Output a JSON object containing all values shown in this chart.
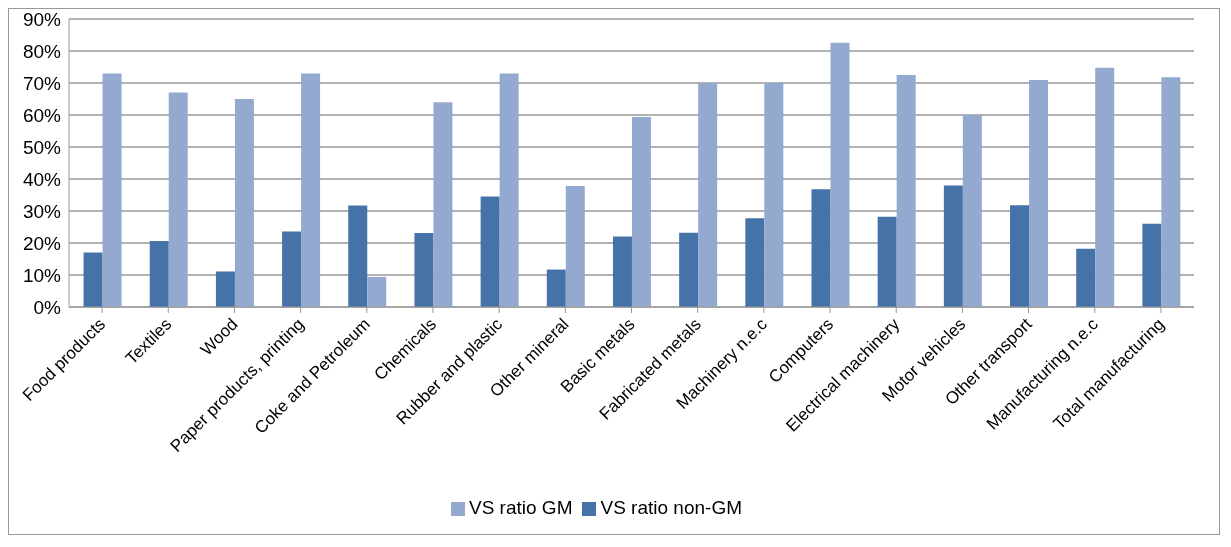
{
  "chart_data": {
    "type": "bar",
    "categories": [
      "Food products",
      "Textiles",
      "Wood",
      "Paper products, printing",
      "Coke and Petroleum",
      "Chemicals",
      "Rubber and plastic",
      "Other mineral",
      "Basic metals",
      "Fabricated metals",
      "Machinery n.e.c",
      "Computers",
      "Electrical machinery",
      "Motor vehicles",
      "Other transport",
      "Manufacturing n.e.c",
      "Total manufacturing"
    ],
    "series": [
      {
        "name": "VS ratio non-GM",
        "color": "#4572a7",
        "values": [
          17,
          20.6,
          11.1,
          23.6,
          31.7,
          23.1,
          34.5,
          11.7,
          22,
          23.2,
          27.7,
          36.8,
          28.2,
          38,
          31.8,
          18.2,
          26
        ]
      },
      {
        "name": "VS ratio GM",
        "color": "#93a9cf",
        "values": [
          73,
          67,
          65,
          73,
          9.4,
          64,
          73,
          37.8,
          59.4,
          70,
          70,
          82.6,
          72.5,
          60,
          70.9,
          74.8,
          71.8
        ]
      }
    ],
    "ylim": [
      0,
      90
    ],
    "yticks": [
      {
        "value": 0,
        "label": "0%"
      },
      {
        "value": 10,
        "label": "10%"
      },
      {
        "value": 20,
        "label": "20%"
      },
      {
        "value": 30,
        "label": "30%"
      },
      {
        "value": 40,
        "label": "40%"
      },
      {
        "value": 50,
        "label": "50%"
      },
      {
        "value": 60,
        "label": "60%"
      },
      {
        "value": 70,
        "label": "70%"
      },
      {
        "value": 80,
        "label": "80%"
      },
      {
        "value": 90,
        "label": "90%"
      }
    ],
    "grid": "y",
    "legend": "bottom"
  }
}
